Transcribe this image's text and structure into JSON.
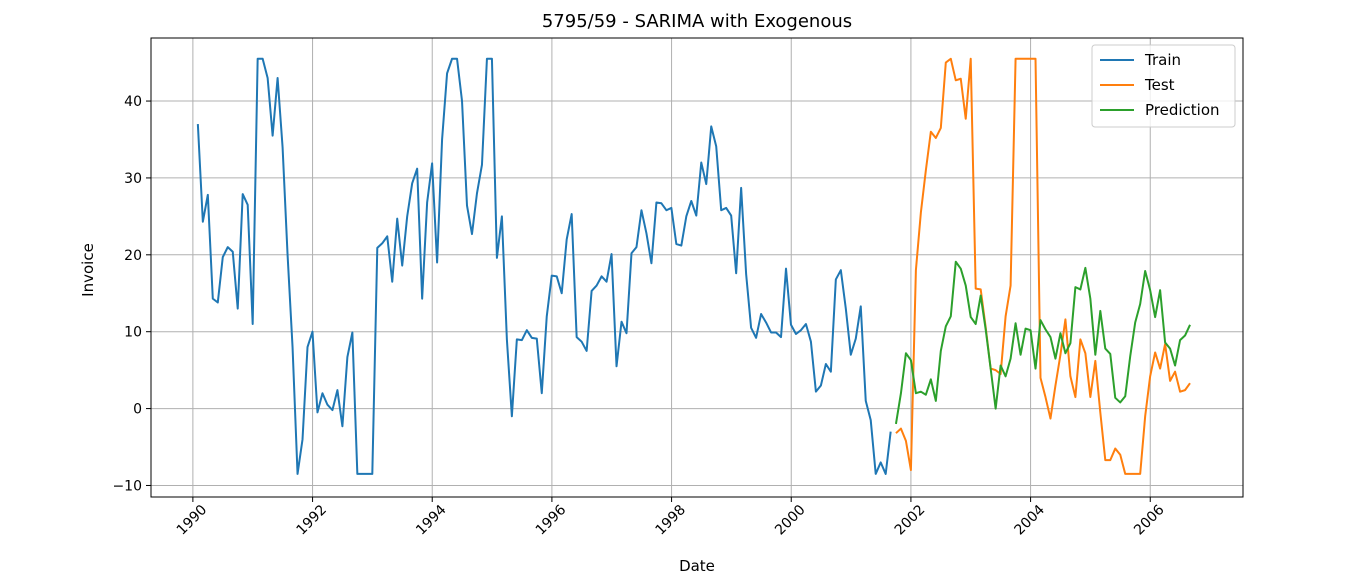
{
  "chart_data": {
    "type": "line",
    "title": "5795/59 - SARIMA with Exogenous",
    "xlabel": "Date",
    "ylabel": "Invoice",
    "xlim": [
      1989.3,
      2007.55
    ],
    "ylim": [
      -11.5,
      48.2
    ],
    "xticks": [
      1990,
      1992,
      1994,
      1996,
      1998,
      2000,
      2002,
      2004,
      2006
    ],
    "xtick_labels": [
      "1990",
      "1992",
      "1994",
      "1996",
      "1998",
      "2000",
      "2002",
      "2004",
      "2006"
    ],
    "yticks": [
      -10,
      0,
      10,
      20,
      30,
      40
    ],
    "ytick_labels": [
      "−10",
      "0",
      "10",
      "20",
      "30",
      "40"
    ],
    "grid": true,
    "legend_position": "top-right",
    "series": [
      {
        "name": "Train",
        "color": "#1f77b4",
        "start": 1990.083,
        "step": 0.0833,
        "values": [
          37.0,
          24.3,
          27.8,
          14.3,
          13.8,
          19.7,
          21.0,
          20.4,
          13.0,
          27.9,
          26.5,
          11.0,
          45.5,
          45.5,
          43.0,
          35.5,
          43.0,
          34.0,
          20.0,
          8.0,
          -8.5,
          -4.0,
          8.0,
          10.0,
          -0.5,
          2.0,
          0.5,
          -0.2,
          2.4,
          -2.3,
          6.7,
          9.9,
          -8.5,
          -8.5,
          -8.5,
          -8.5,
          20.9,
          21.5,
          22.4,
          16.5,
          24.7,
          18.6,
          25.0,
          29.3,
          31.2,
          14.3,
          26.8,
          31.9,
          19.0,
          35.0,
          43.6,
          45.5,
          45.5,
          40.0,
          26.4,
          22.7,
          28.0,
          31.7,
          45.5,
          45.5,
          19.6,
          25.0,
          9.0,
          -1.0,
          9.0,
          8.9,
          10.2,
          9.2,
          9.1,
          2.0,
          12.0,
          17.3,
          17.2,
          15.0,
          22.0,
          25.3,
          9.3,
          8.7,
          7.5,
          15.3,
          16.0,
          17.2,
          16.5,
          20.1,
          5.5,
          11.3,
          9.8,
          20.2,
          21.0,
          25.8,
          22.8,
          18.9,
          26.8,
          26.7,
          25.8,
          26.1,
          21.4,
          21.2,
          25.0,
          27.0,
          25.1,
          32.0,
          29.2,
          36.7,
          34.1,
          25.8,
          26.1,
          25.1,
          17.6,
          28.7,
          17.5,
          10.5,
          9.2,
          12.3,
          11.2,
          9.9,
          9.9,
          9.3,
          18.2,
          10.9,
          9.7,
          10.2,
          11.0,
          8.7,
          2.2,
          3.0,
          5.8,
          4.8,
          16.8,
          18.0,
          13.0,
          7.0,
          9.1,
          13.3,
          1.0,
          -1.5,
          -8.5,
          -7.0,
          -8.5,
          -3.0
        ]
      },
      {
        "name": "Test",
        "color": "#ff7f0e",
        "start": 2001.75,
        "step": 0.0833,
        "values": [
          -3.2,
          -2.6,
          -4.2,
          -8.0,
          18.0,
          25.5,
          31.0,
          36.0,
          35.2,
          36.5,
          45.0,
          45.5,
          42.7,
          42.9,
          37.7,
          45.5,
          15.6,
          15.5,
          10.6,
          5.2,
          5.0,
          4.5,
          12.0,
          16.0,
          45.5,
          45.5,
          45.5,
          45.5,
          45.5,
          4.0,
          1.5,
          -1.3,
          3.0,
          7.0,
          11.6,
          4.2,
          1.5,
          9.0,
          7.2,
          1.5,
          6.2,
          -0.5,
          -6.7,
          -6.7,
          -5.2,
          -6.0,
          -8.5,
          -8.5,
          -8.5,
          -8.5,
          -1.0,
          4.2,
          7.3,
          5.2,
          8.4,
          3.6,
          4.8,
          2.2,
          2.4,
          3.3
        ]
      },
      {
        "name": "Prediction",
        "color": "#2ca02c",
        "start": 2001.75,
        "step": 0.0833,
        "values": [
          -2.0,
          2.0,
          7.2,
          6.3,
          2.0,
          2.2,
          1.8,
          3.8,
          1.0,
          7.5,
          10.7,
          12.0,
          19.1,
          18.2,
          16.0,
          11.9,
          11.0,
          14.7,
          10.3,
          5.2,
          0.0,
          5.6,
          4.2,
          6.5,
          11.1,
          7.0,
          10.4,
          10.2,
          5.2,
          11.5,
          10.3,
          9.3,
          6.5,
          9.8,
          7.2,
          8.5,
          15.8,
          15.5,
          18.3,
          14.3,
          7.0,
          12.7,
          7.8,
          7.1,
          1.4,
          0.8,
          1.6,
          6.8,
          11.2,
          13.6,
          17.9,
          15.4,
          11.9,
          15.4,
          8.6,
          7.8,
          5.6,
          8.9,
          9.5,
          10.9
        ]
      }
    ]
  }
}
